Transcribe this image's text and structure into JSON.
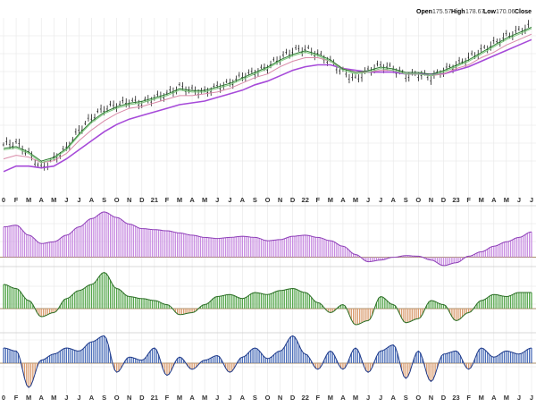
{
  "header": {
    "open_label": "Open",
    "open_value": "175.57",
    "high_label": "High",
    "high_value": "178.67",
    "low_label": "Low",
    "low_value": "170.06",
    "close_label": "Close"
  },
  "colors": {
    "price_bars": "#000000",
    "ma_green_dark": "#2e7d32",
    "ma_green_light": "#7ec87e",
    "ma_pink": "#d98aa8",
    "ma_purple": "#a64ad9",
    "panel1_fill": "#c78be0",
    "panel1_stroke": "#8e3fb8",
    "panel2_fill": "#55a64c",
    "panel2_neg_fill": "#d99a6c",
    "panel2_stroke": "#2b6e25",
    "panel3_fill": "#4a6db8",
    "panel3_stroke": "#1e3a8a",
    "grid": "#e6e6e6"
  },
  "chart_data": {
    "type": "line",
    "grid": true,
    "x_axis": {
      "ticks": [
        "0",
        "F",
        "M",
        "A",
        "M",
        "J",
        "J",
        "A",
        "S",
        "O",
        "N",
        "D",
        "21",
        "F",
        "M",
        "A",
        "M",
        "J",
        "J",
        "A",
        "S",
        "O",
        "N",
        "D",
        "22",
        "F",
        "M",
        "A",
        "M",
        "J",
        "J",
        "A",
        "S",
        "O",
        "N",
        "D",
        "23",
        "F",
        "M",
        "A",
        "M",
        "J",
        "J"
      ],
      "tick_index": [
        0,
        1,
        2,
        3,
        4,
        5,
        6,
        7,
        8,
        9,
        10,
        11,
        12,
        13,
        14,
        15,
        16,
        17,
        18,
        19,
        20,
        21,
        22,
        23,
        24,
        25,
        26,
        27,
        28,
        29,
        30,
        31,
        32,
        33,
        34,
        35,
        36,
        37,
        38,
        39,
        40,
        41,
        42
      ]
    },
    "price_panel": {
      "series_close": [
        60,
        61,
        55,
        47,
        52,
        58,
        68,
        75,
        80,
        82,
        84,
        83,
        86,
        88,
        92,
        90,
        89,
        92,
        94,
        98,
        100,
        103,
        108,
        112,
        113,
        110,
        106,
        100,
        96,
        101,
        104,
        102,
        98,
        99,
        97,
        101,
        104,
        108,
        112,
        116,
        120,
        123,
        126
      ],
      "ma_short": [
        57,
        58,
        55,
        50,
        52,
        57,
        65,
        72,
        77,
        80,
        82,
        83,
        85,
        87,
        90,
        89,
        89,
        91,
        93,
        96,
        99,
        102,
        106,
        109,
        111,
        109,
        106,
        101,
        99,
        100,
        102,
        101,
        99,
        99,
        98,
        100,
        103,
        106,
        110,
        114,
        118,
        121,
        124
      ],
      "ma_medium": [
        52,
        54,
        53,
        50,
        51,
        55,
        62,
        68,
        73,
        77,
        80,
        81,
        83,
        85,
        87,
        87,
        88,
        89,
        91,
        94,
        97,
        99,
        103,
        106,
        108,
        108,
        106,
        102,
        100,
        100,
        101,
        101,
        99,
        99,
        98,
        99,
        102,
        104,
        108,
        111,
        115,
        118,
        121
      ],
      "ma_long": [
        45,
        48,
        48,
        47,
        48,
        52,
        57,
        62,
        67,
        71,
        74,
        76,
        78,
        80,
        82,
        83,
        84,
        86,
        88,
        90,
        93,
        95,
        98,
        101,
        103,
        104,
        104,
        102,
        101,
        100,
        100,
        100,
        99,
        99,
        99,
        99,
        101,
        103,
        106,
        109,
        112,
        115,
        118
      ],
      "ylim": [
        35,
        130
      ]
    },
    "panel_1": {
      "values": [
        0.55,
        0.58,
        0.4,
        0.25,
        0.28,
        0.4,
        0.55,
        0.7,
        0.82,
        0.72,
        0.6,
        0.52,
        0.5,
        0.48,
        0.44,
        0.4,
        0.36,
        0.34,
        0.36,
        0.38,
        0.36,
        0.3,
        0.32,
        0.38,
        0.4,
        0.36,
        0.3,
        0.2,
        0.05,
        -0.08,
        -0.05,
        0.0,
        0.03,
        0.02,
        -0.05,
        -0.15,
        -0.1,
        0.02,
        0.1,
        0.2,
        0.28,
        0.36,
        0.46
      ],
      "ylim": [
        -0.2,
        0.9
      ]
    },
    "panel_2": {
      "values": [
        0.6,
        0.5,
        0.2,
        -0.2,
        -0.1,
        0.25,
        0.45,
        0.6,
        0.9,
        0.5,
        0.3,
        0.25,
        0.2,
        0.1,
        -0.15,
        -0.1,
        0.1,
        0.3,
        0.35,
        0.25,
        0.4,
        0.35,
        0.45,
        0.5,
        0.4,
        0.15,
        -0.1,
        0.1,
        -0.4,
        -0.3,
        0.3,
        0.1,
        -0.35,
        -0.25,
        0.2,
        0.1,
        -0.3,
        -0.1,
        0.2,
        0.35,
        0.3,
        0.4,
        0.4
      ],
      "ylim": [
        -0.6,
        1.0
      ]
    },
    "panel_3": {
      "values": [
        0.5,
        0.4,
        -0.8,
        0.1,
        0.3,
        0.5,
        0.4,
        0.7,
        0.9,
        -0.3,
        0.2,
        0.1,
        0.5,
        -0.4,
        0.2,
        -0.2,
        0.1,
        0.25,
        -0.3,
        0.2,
        0.5,
        0.15,
        0.4,
        0.9,
        0.3,
        -0.2,
        0.4,
        -0.2,
        0.5,
        -0.3,
        0.4,
        0.6,
        -0.5,
        0.4,
        -0.6,
        0.3,
        0.4,
        -0.2,
        0.5,
        0.2,
        0.4,
        0.3,
        0.5
      ],
      "ylim": [
        -1.0,
        1.0
      ]
    }
  }
}
